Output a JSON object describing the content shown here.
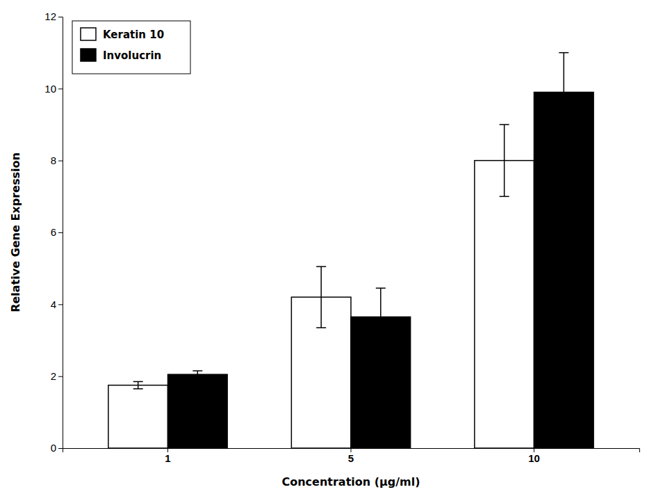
{
  "chart_data": {
    "type": "bar",
    "categories": [
      "1",
      "5",
      "10"
    ],
    "series": [
      {
        "name": "Keratin 10",
        "color": "#ffffff",
        "values": [
          1.75,
          4.2,
          8.0
        ],
        "errors": [
          0.1,
          0.85,
          1.0
        ]
      },
      {
        "name": "Involucrin",
        "color": "#000000",
        "values": [
          2.05,
          3.65,
          9.9
        ],
        "errors": [
          0.1,
          0.8,
          1.1
        ]
      }
    ],
    "xlabel": "Concentration (μg/ml)",
    "ylabel": "Relative Gene Expression",
    "ylim": [
      0,
      12
    ],
    "yticks": [
      0,
      2,
      4,
      6,
      8,
      10,
      12
    ],
    "legend": "upper left",
    "grid": false
  }
}
